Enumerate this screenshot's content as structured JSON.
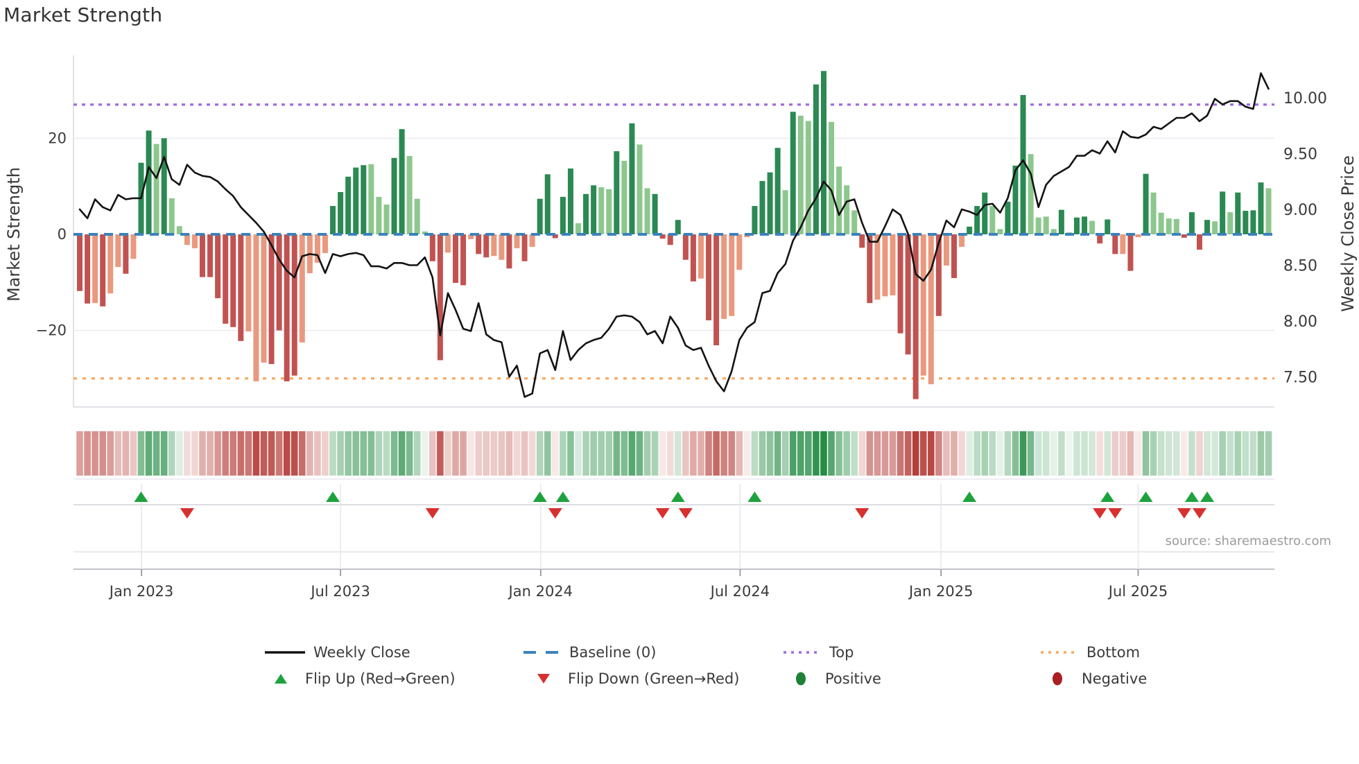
{
  "page": {
    "title": "Market Strength",
    "source": "source: sharemaestro.com"
  },
  "colors": {
    "bar_pos_dark": "#2b8953",
    "bar_pos_light": "#8ec78e",
    "bar_neg_dark": "#c05351",
    "bar_neg_light": "#e9997f",
    "price_line": "#131313",
    "baseline": "#3b82bb",
    "top_line": "#a06ad8",
    "bottom_line": "#f5a963",
    "flip_up": "#1ea23d",
    "flip_down": "#d7302f",
    "positive_dot": "#1f8038",
    "negative_dot": "#a91f24",
    "heat_pos_strong": "#258c45",
    "heat_neg_strong": "#b43e3a",
    "grid": "#e8e8f2",
    "spine": "#d9d9e0",
    "tick_text": "#3a3a3a"
  },
  "legend": {
    "row1": [
      {
        "id": "weekly-close",
        "label": "Weekly Close"
      },
      {
        "id": "baseline",
        "label": "Baseline (0)"
      },
      {
        "id": "top",
        "label": "Top"
      },
      {
        "id": "bottom",
        "label": "Bottom"
      }
    ],
    "row2": [
      {
        "id": "flip-up",
        "label": "Flip Up (Red→Green)"
      },
      {
        "id": "flip-down",
        "label": "Flip Down (Green→Red)"
      },
      {
        "id": "positive",
        "label": "Positive"
      },
      {
        "id": "negative",
        "label": "Negative"
      }
    ]
  },
  "chart_data": {
    "type": [
      "bar",
      "line",
      "heatmap"
    ],
    "title": "Market Strength",
    "weeks": 156,
    "baseline": 0,
    "top_threshold": 27,
    "bottom_threshold": -30,
    "x_ticks": [
      {
        "label": "Jan 2023",
        "week": 8.05
      },
      {
        "label": "Jul 2023",
        "week": 34.0
      },
      {
        "label": "Jan 2024",
        "week": 60.1
      },
      {
        "label": "Jul 2024",
        "week": 86.1
      },
      {
        "label": "Jan 2025",
        "week": 112.3
      },
      {
        "label": "Jul 2025",
        "week": 138.0
      }
    ],
    "y_left": {
      "label": "Market Strength",
      "ticks": [
        {
          "label": "20",
          "value": 20
        },
        {
          "label": "0",
          "value": 0
        },
        {
          "label": "−20",
          "value": -20
        }
      ],
      "range": [
        -37,
        37
      ],
      "grid_values": [
        20,
        -20
      ]
    },
    "y_right": {
      "label": "Weekly Close Price",
      "ticks": [
        {
          "label": "10.00",
          "value": 10.0
        },
        {
          "label": "9.50",
          "value": 9.5
        },
        {
          "label": "9.00",
          "value": 9.0
        },
        {
          "label": "8.50",
          "value": 8.5
        },
        {
          "label": "8.00",
          "value": 8.0
        },
        {
          "label": "7.50",
          "value": 7.5
        }
      ]
    },
    "strength": {
      "name": "Market Strength (weekly oscillator bars)",
      "values": [
        -11.8,
        -14.4,
        -14.3,
        -15,
        -12.3,
        -6.8,
        -8.2,
        -5.1,
        14.9,
        21.6,
        18.8,
        20,
        7.5,
        1.7,
        -2.2,
        -2.9,
        -8.9,
        -8.9,
        -13.3,
        -18.6,
        -19.3,
        -22.2,
        -20.2,
        -30.6,
        -26.7,
        -27,
        -20,
        -30.6,
        -29.4,
        -22.5,
        -8.1,
        -5.9,
        -3.9,
        5.9,
        8.8,
        12,
        13.9,
        14.4,
        14.6,
        7.8,
        6.2,
        15.9,
        21.9,
        16.3,
        7.4,
        0.6,
        -5.6,
        -26.2,
        -3.8,
        -10.1,
        -10.6,
        -1,
        -4.1,
        -4.8,
        -4.5,
        -5.3,
        -7.1,
        -2.9,
        -5.6,
        -2.6,
        7.4,
        12.5,
        -0.8,
        7.8,
        13.7,
        2.3,
        8.4,
        10.2,
        9.8,
        9.4,
        17.3,
        15.3,
        23.1,
        18.7,
        9.6,
        8.4,
        -0.9,
        -2.2,
        3,
        -5.3,
        -9.8,
        -9.2,
        -17.9,
        -23.1,
        -17.6,
        -17,
        -7.4,
        -0.6,
        5.9,
        11.1,
        12.9,
        18,
        9.2,
        25.5,
        24.7,
        23.6,
        31.2,
        34,
        23.4,
        14.1,
        10.2,
        5,
        -2.8,
        -14.3,
        -13.6,
        -12.9,
        -12.7,
        -20.6,
        -25,
        -34.3,
        -29.4,
        -31.2,
        -17,
        -6.5,
        -9.1,
        -2.6,
        1.6,
        5.9,
        8.7,
        5.9,
        1.1,
        6.8,
        14.3,
        29,
        16.7,
        3.5,
        3.7,
        1.1,
        5.1,
        0.4,
        3.5,
        3.7,
        2.8,
        -1.9,
        3.1,
        -4.1,
        -4.1,
        -7.6,
        -0.6,
        12.6,
        8.7,
        4.5,
        3.3,
        3.2,
        -0.7,
        4.6,
        -3.2,
        3,
        2.7,
        8.9,
        4.6,
        8.7,
        4.9,
        5,
        10.8,
        9.6
      ],
      "shade": "ddldlldlddldllllddddddlllddddlllldddddlllddlllddlddlddlldldldddddlddlldldllddddddlddllllddddldllddllllddllldddlldldldddlldddlllldlddldddldldllllddddldlddddl"
    },
    "price": {
      "name": "Weekly Close",
      "values": [
        9.0,
        8.92,
        9.09,
        9.02,
        8.99,
        9.13,
        9.09,
        9.1,
        9.1,
        9.38,
        9.28,
        9.47,
        9.27,
        9.22,
        9.4,
        9.33,
        9.3,
        9.29,
        9.25,
        9.18,
        9.12,
        9.02,
        8.95,
        8.88,
        8.8,
        8.68,
        8.55,
        8.45,
        8.39,
        8.58,
        8.6,
        8.59,
        8.43,
        8.6,
        8.58,
        8.6,
        8.61,
        8.59,
        8.49,
        8.49,
        8.47,
        8.52,
        8.52,
        8.5,
        8.5,
        8.57,
        8.39,
        7.87,
        8.25,
        8.1,
        7.93,
        7.91,
        8.16,
        7.88,
        7.83,
        7.81,
        7.5,
        7.6,
        7.32,
        7.35,
        7.71,
        7.74,
        7.56,
        7.91,
        7.65,
        7.74,
        7.8,
        7.83,
        7.85,
        7.93,
        8.04,
        8.05,
        8.04,
        7.99,
        7.88,
        7.91,
        7.8,
        8.04,
        7.94,
        7.78,
        7.74,
        7.76,
        7.6,
        7.46,
        7.37,
        7.55,
        7.83,
        7.94,
        7.99,
        8.25,
        8.27,
        8.43,
        8.51,
        8.72,
        8.84,
        8.99,
        9.1,
        9.25,
        9.17,
        8.95,
        9.07,
        9.09,
        8.88,
        8.71,
        8.71,
        8.85,
        9.0,
        8.95,
        8.78,
        8.42,
        8.36,
        8.46,
        8.7,
        8.9,
        8.84,
        9.0,
        8.98,
        8.95,
        9.04,
        9.05,
        8.97,
        9.1,
        9.35,
        9.44,
        9.32,
        9.02,
        9.22,
        9.3,
        9.34,
        9.38,
        9.48,
        9.48,
        9.53,
        9.5,
        9.61,
        9.51,
        9.7,
        9.65,
        9.64,
        9.67,
        9.74,
        9.72,
        9.77,
        9.82,
        9.82,
        9.86,
        9.79,
        9.84,
        9.99,
        9.94,
        9.97,
        9.97,
        9.92,
        9.9,
        10.22,
        10.08
      ]
    },
    "flip_up_weeks": [
      8,
      33,
      60,
      63,
      78,
      88,
      116,
      134,
      139,
      145,
      147
    ],
    "flip_down_weeks": [
      14,
      46,
      62,
      76,
      79,
      102,
      133,
      135,
      144,
      146
    ]
  }
}
